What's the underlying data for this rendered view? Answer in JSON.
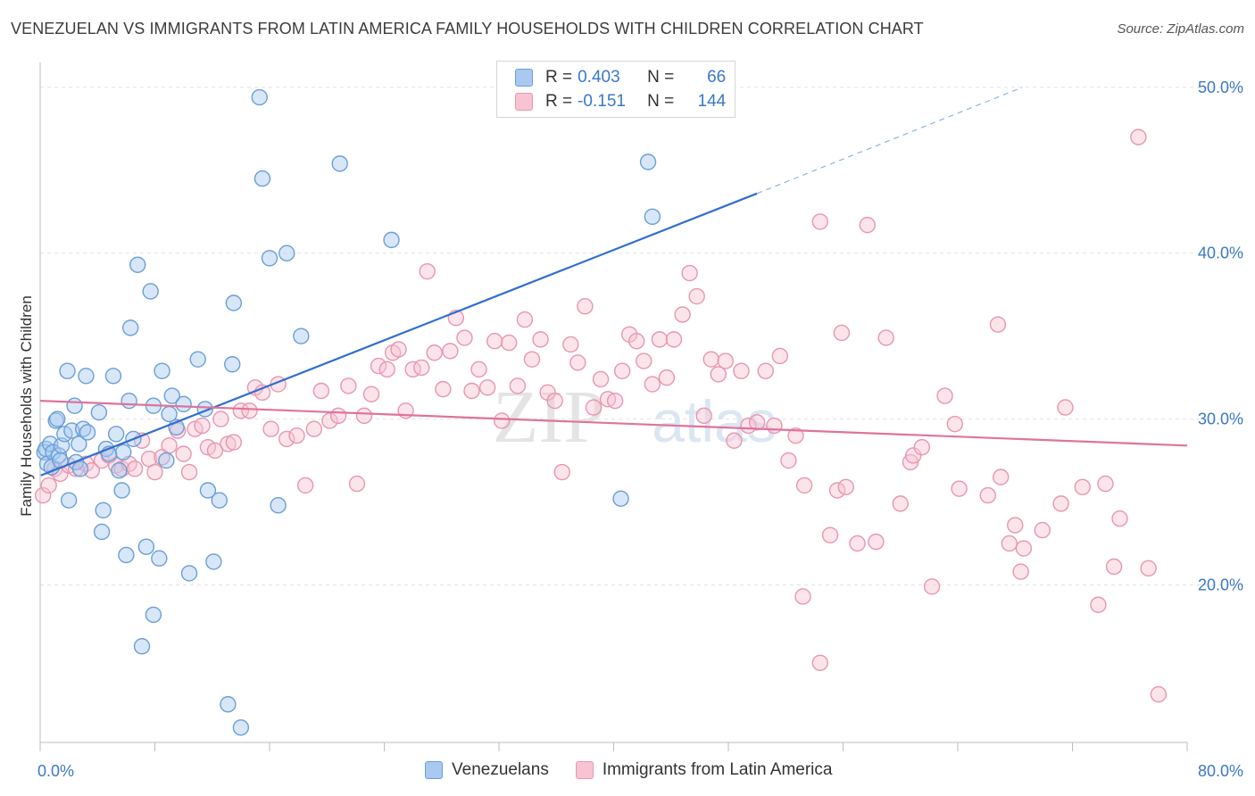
{
  "title": "VENEZUELAN VS IMMIGRANTS FROM LATIN AMERICA FAMILY HOUSEHOLDS WITH CHILDREN CORRELATION CHART",
  "source": "Source: ZipAtlas.com",
  "watermark": {
    "zip": "ZIP",
    "atlas": "atlas"
  },
  "legend": {
    "r_label": "R =",
    "n_label": "N =",
    "rows": [
      {
        "r": "0.403",
        "n": "66",
        "color": "#a9c9f0",
        "border": "#6a9fd8"
      },
      {
        "r": "-0.151",
        "n": "144",
        "color": "#f8c3d3",
        "border": "#e896b0"
      }
    ]
  },
  "bottom_legend": [
    "Venezuelans",
    "Immigrants from Latin America"
  ],
  "chart_data": {
    "type": "scatter",
    "title": "VENEZUELAN VS IMMIGRANTS FROM LATIN AMERICA FAMILY HOUSEHOLDS WITH CHILDREN CORRELATION CHART",
    "xlabel": "",
    "ylabel": "Family Households with Children",
    "xlim": [
      0,
      80
    ],
    "ylim": [
      10.5,
      51.5
    ],
    "x_tick_labels": [
      "0.0%",
      "80.0%"
    ],
    "y_ticks": [
      20,
      30,
      40,
      50
    ],
    "y_tick_labels": [
      "20.0%",
      "30.0%",
      "40.0%",
      "50.0%"
    ],
    "grid": true,
    "series": [
      {
        "name": "Venezuelans",
        "color": "#6a9fd8",
        "fill": "#a9c9f0",
        "trend": {
          "x": [
            0,
            50
          ],
          "y": [
            26.6,
            43.6
          ],
          "dashed_to": [
            68.5,
            50.0
          ]
        },
        "points": [
          [
            0.3,
            28.0
          ],
          [
            0.4,
            28.2
          ],
          [
            0.5,
            27.3
          ],
          [
            0.7,
            28.5
          ],
          [
            0.8,
            27.1
          ],
          [
            0.9,
            28.0
          ],
          [
            1.1,
            29.9
          ],
          [
            1.2,
            30.0
          ],
          [
            1.3,
            27.8
          ],
          [
            1.4,
            27.5
          ],
          [
            1.5,
            28.4
          ],
          [
            1.7,
            29.1
          ],
          [
            1.9,
            32.9
          ],
          [
            2.0,
            25.1
          ],
          [
            2.2,
            29.3
          ],
          [
            2.4,
            30.8
          ],
          [
            2.5,
            27.4
          ],
          [
            2.7,
            28.5
          ],
          [
            2.8,
            27.0
          ],
          [
            3.0,
            29.4
          ],
          [
            3.2,
            32.6
          ],
          [
            3.3,
            29.2
          ],
          [
            4.1,
            30.4
          ],
          [
            4.3,
            23.2
          ],
          [
            4.4,
            24.5
          ],
          [
            4.6,
            28.2
          ],
          [
            4.8,
            27.9
          ],
          [
            5.1,
            32.6
          ],
          [
            5.3,
            29.1
          ],
          [
            5.5,
            26.9
          ],
          [
            5.7,
            25.7
          ],
          [
            5.8,
            28.0
          ],
          [
            6.0,
            21.8
          ],
          [
            6.2,
            31.1
          ],
          [
            6.3,
            35.5
          ],
          [
            6.5,
            28.8
          ],
          [
            6.8,
            39.3
          ],
          [
            7.1,
            16.3
          ],
          [
            7.4,
            22.3
          ],
          [
            7.7,
            37.7
          ],
          [
            7.9,
            30.8
          ],
          [
            7.9,
            18.2
          ],
          [
            8.3,
            21.6
          ],
          [
            8.5,
            32.9
          ],
          [
            8.8,
            27.5
          ],
          [
            9.0,
            30.3
          ],
          [
            9.2,
            31.4
          ],
          [
            9.5,
            29.5
          ],
          [
            10.0,
            30.9
          ],
          [
            10.4,
            20.7
          ],
          [
            11.0,
            33.6
          ],
          [
            11.5,
            30.6
          ],
          [
            11.7,
            25.7
          ],
          [
            12.1,
            21.4
          ],
          [
            12.5,
            25.1
          ],
          [
            13.1,
            12.8
          ],
          [
            13.4,
            33.3
          ],
          [
            13.5,
            37.0
          ],
          [
            14.0,
            11.4
          ],
          [
            15.3,
            49.4
          ],
          [
            15.5,
            44.5
          ],
          [
            16.0,
            39.7
          ],
          [
            16.6,
            24.8
          ],
          [
            17.2,
            40.0
          ],
          [
            18.2,
            35.0
          ],
          [
            20.9,
            45.4
          ],
          [
            24.5,
            40.8
          ],
          [
            40.5,
            25.2
          ],
          [
            42.4,
            45.5
          ],
          [
            42.7,
            42.2
          ]
        ]
      },
      {
        "name": "Immigrants from Latin America",
        "color": "#e896b0",
        "fill": "#f8c3d3",
        "trend": {
          "x": [
            0,
            80
          ],
          "y": [
            31.1,
            28.4
          ]
        },
        "points": [
          [
            0.2,
            25.4
          ],
          [
            0.6,
            26.0
          ],
          [
            1.0,
            27.0
          ],
          [
            1.4,
            26.7
          ],
          [
            2.0,
            27.2
          ],
          [
            2.5,
            27.0
          ],
          [
            3.2,
            27.3
          ],
          [
            3.6,
            26.9
          ],
          [
            4.3,
            27.5
          ],
          [
            4.8,
            27.8
          ],
          [
            5.3,
            27.2
          ],
          [
            5.7,
            27.0
          ],
          [
            6.2,
            27.3
          ],
          [
            6.6,
            27.0
          ],
          [
            7.1,
            28.7
          ],
          [
            7.6,
            27.6
          ],
          [
            8.0,
            26.8
          ],
          [
            8.5,
            27.7
          ],
          [
            9.0,
            28.4
          ],
          [
            9.6,
            29.3
          ],
          [
            10.0,
            27.9
          ],
          [
            10.4,
            26.8
          ],
          [
            10.8,
            29.4
          ],
          [
            11.3,
            29.6
          ],
          [
            11.7,
            28.3
          ],
          [
            12.2,
            28.1
          ],
          [
            12.6,
            30.0
          ],
          [
            13.1,
            28.5
          ],
          [
            13.5,
            28.6
          ],
          [
            14.0,
            30.5
          ],
          [
            14.6,
            30.5
          ],
          [
            15.0,
            31.9
          ],
          [
            15.5,
            31.6
          ],
          [
            16.1,
            29.4
          ],
          [
            16.6,
            32.1
          ],
          [
            17.2,
            28.8
          ],
          [
            17.9,
            29.0
          ],
          [
            18.5,
            26.0
          ],
          [
            19.1,
            29.4
          ],
          [
            19.6,
            31.7
          ],
          [
            20.2,
            29.9
          ],
          [
            20.8,
            30.2
          ],
          [
            21.5,
            32.0
          ],
          [
            22.1,
            26.1
          ],
          [
            22.6,
            30.2
          ],
          [
            23.1,
            31.5
          ],
          [
            23.6,
            33.2
          ],
          [
            24.2,
            33.0
          ],
          [
            24.6,
            34.0
          ],
          [
            25.0,
            34.2
          ],
          [
            25.5,
            30.5
          ],
          [
            26.0,
            33.0
          ],
          [
            26.6,
            33.1
          ],
          [
            27.0,
            38.9
          ],
          [
            27.5,
            34.0
          ],
          [
            28.1,
            31.8
          ],
          [
            28.6,
            34.1
          ],
          [
            29.0,
            36.1
          ],
          [
            29.6,
            34.9
          ],
          [
            30.1,
            31.7
          ],
          [
            30.6,
            33.0
          ],
          [
            31.2,
            31.9
          ],
          [
            31.7,
            34.7
          ],
          [
            32.2,
            29.9
          ],
          [
            32.7,
            34.6
          ],
          [
            33.3,
            32.0
          ],
          [
            33.8,
            36.0
          ],
          [
            34.3,
            33.6
          ],
          [
            34.9,
            34.8
          ],
          [
            35.4,
            31.6
          ],
          [
            35.9,
            31.1
          ],
          [
            36.4,
            26.8
          ],
          [
            37.0,
            34.5
          ],
          [
            37.5,
            33.4
          ],
          [
            38.0,
            36.8
          ],
          [
            38.6,
            30.7
          ],
          [
            39.1,
            32.4
          ],
          [
            39.6,
            31.2
          ],
          [
            40.1,
            31.1
          ],
          [
            40.6,
            32.9
          ],
          [
            41.1,
            35.1
          ],
          [
            41.6,
            34.7
          ],
          [
            42.1,
            33.5
          ],
          [
            42.7,
            32.1
          ],
          [
            43.2,
            34.8
          ],
          [
            43.7,
            32.5
          ],
          [
            44.2,
            34.8
          ],
          [
            44.8,
            36.3
          ],
          [
            45.3,
            38.8
          ],
          [
            45.8,
            37.4
          ],
          [
            46.3,
            30.2
          ],
          [
            46.8,
            33.6
          ],
          [
            47.3,
            32.7
          ],
          [
            47.8,
            33.5
          ],
          [
            48.4,
            28.7
          ],
          [
            48.9,
            32.9
          ],
          [
            49.4,
            29.6
          ],
          [
            50.0,
            29.8
          ],
          [
            50.6,
            32.9
          ],
          [
            51.2,
            29.6
          ],
          [
            51.6,
            33.8
          ],
          [
            52.2,
            27.5
          ],
          [
            52.7,
            29.0
          ],
          [
            53.3,
            26.0
          ],
          [
            54.4,
            41.9
          ],
          [
            55.1,
            23.0
          ],
          [
            55.6,
            25.7
          ],
          [
            55.9,
            35.2
          ],
          [
            56.2,
            25.9
          ],
          [
            57.0,
            22.5
          ],
          [
            57.7,
            41.7
          ],
          [
            58.3,
            22.6
          ],
          [
            59.0,
            34.9
          ],
          [
            60.0,
            24.9
          ],
          [
            60.7,
            27.4
          ],
          [
            60.9,
            27.8
          ],
          [
            61.5,
            28.3
          ],
          [
            62.2,
            19.9
          ],
          [
            63.1,
            31.4
          ],
          [
            63.8,
            29.7
          ],
          [
            64.1,
            25.8
          ],
          [
            66.1,
            25.4
          ],
          [
            66.8,
            35.7
          ],
          [
            67.0,
            26.5
          ],
          [
            67.6,
            22.5
          ],
          [
            68.0,
            23.6
          ],
          [
            68.4,
            20.8
          ],
          [
            68.6,
            22.2
          ],
          [
            69.9,
            23.3
          ],
          [
            71.2,
            24.9
          ],
          [
            71.5,
            30.7
          ],
          [
            72.7,
            25.9
          ],
          [
            73.8,
            18.8
          ],
          [
            74.3,
            26.1
          ],
          [
            74.9,
            21.1
          ],
          [
            75.3,
            24.0
          ],
          [
            76.6,
            47.0
          ],
          [
            77.3,
            21.0
          ],
          [
            78.0,
            13.4
          ],
          [
            53.2,
            19.3
          ],
          [
            54.4,
            15.3
          ]
        ]
      }
    ]
  }
}
